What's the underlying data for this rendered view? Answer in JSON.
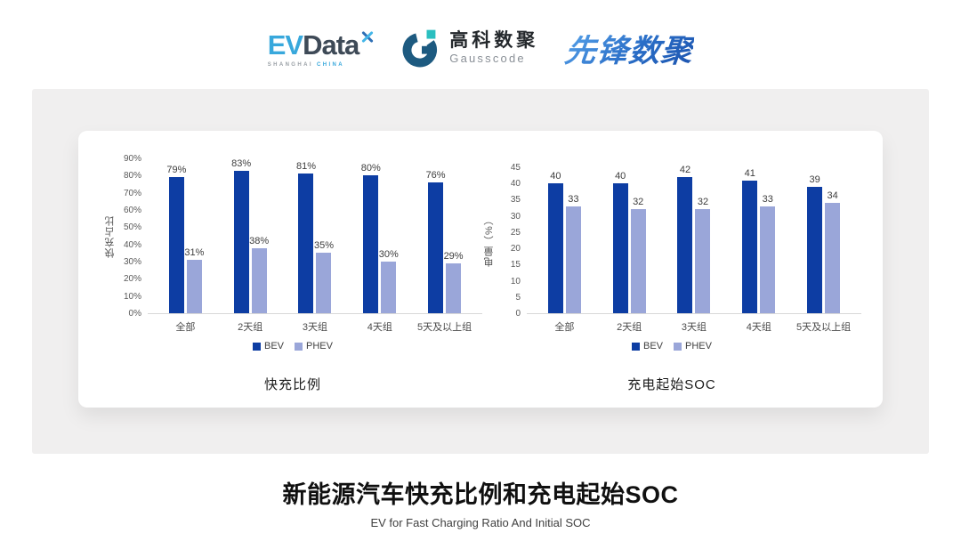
{
  "header": {
    "evdata": {
      "ev": "EV",
      "data": "Data",
      "sub_left": "SHANGHAI",
      "sub_right": "CHINA"
    },
    "gausscode": {
      "cn": "高科数聚",
      "en": "Gausscode"
    },
    "pioneer": {
      "text": "先锋数聚"
    }
  },
  "footer": {
    "title": "新能源汽车快充比例和充电起始SOC",
    "subtitle": "EV for Fast Charging Ratio And Initial SOC"
  },
  "colors": {
    "bev": "#0d3da3",
    "phev": "#9aa6d9",
    "axis_line": "#d8d8d8",
    "panel_bg": "#f0efef",
    "gauss_dark": "#1d5a80",
    "gauss_teal": "#2abfc0",
    "evdata_cyan": "#38a8dc",
    "evdata_dark": "#3e4a57"
  },
  "chart_data": [
    {
      "type": "bar",
      "title": "快充比例",
      "ylabel": "快充占比",
      "xlabel": "",
      "categories": [
        "全部",
        "2天组",
        "3天组",
        "4天组",
        "5天及以上组"
      ],
      "series": [
        {
          "name": "BEV",
          "color": "#0d3da3",
          "values": [
            79,
            83,
            81,
            80,
            76
          ]
        },
        {
          "name": "PHEV",
          "color": "#9aa6d9",
          "values": [
            31,
            38,
            35,
            30,
            29
          ]
        }
      ],
      "value_suffix": "%",
      "ylim": [
        0,
        90
      ],
      "ytick_step": 10,
      "ytick_suffix": "%",
      "grid": false,
      "legend_position": "bottom"
    },
    {
      "type": "bar",
      "title": "充电起始SOC",
      "ylabel": "电量（%）",
      "xlabel": "",
      "categories": [
        "全部",
        "2天组",
        "3天组",
        "4天组",
        "5天及以上组"
      ],
      "series": [
        {
          "name": "BEV",
          "color": "#0d3da3",
          "values": [
            40,
            40,
            42,
            41,
            39
          ]
        },
        {
          "name": "PHEV",
          "color": "#9aa6d9",
          "values": [
            33,
            32,
            32,
            33,
            34
          ]
        }
      ],
      "value_suffix": "",
      "ylim": [
        0,
        45
      ],
      "ytick_step": 5,
      "ytick_suffix": "",
      "grid": false,
      "legend_position": "bottom"
    }
  ]
}
